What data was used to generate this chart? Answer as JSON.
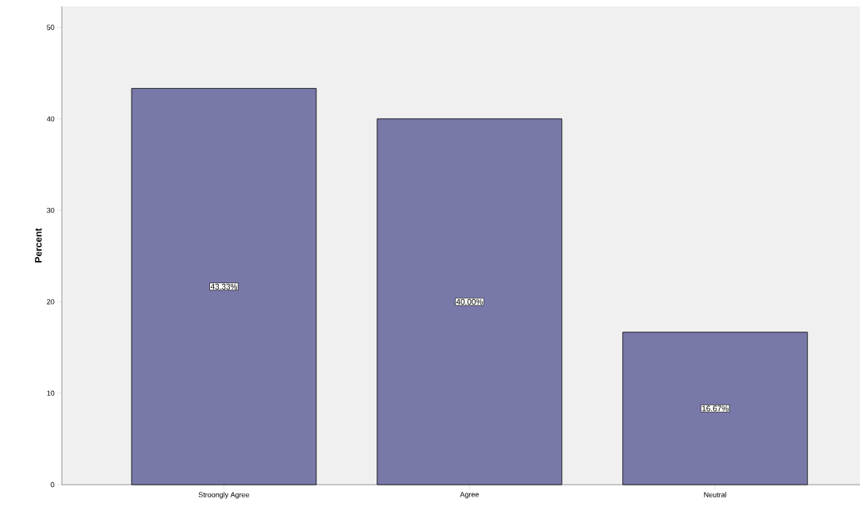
{
  "chart_data": {
    "type": "bar",
    "ylabel": "Percent",
    "categories": [
      "Stroongly Agree",
      "Agree",
      "Neutral"
    ],
    "values": [
      43.33,
      40.0,
      16.67
    ],
    "value_labels": [
      "43.33%",
      "40.00%",
      "16.67%"
    ],
    "color": "#7879a8",
    "ylim": [
      0,
      52.3
    ],
    "yticks": [
      0,
      10,
      20,
      30,
      40,
      50
    ]
  }
}
